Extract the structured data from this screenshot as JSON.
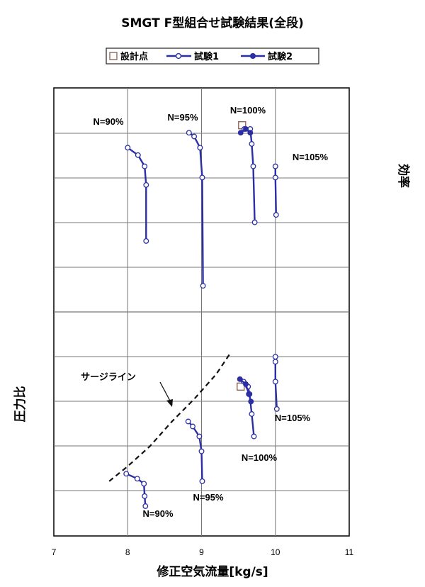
{
  "chart_data": {
    "type": "line",
    "title": "SMGT F型組合せ試験結果(全段)",
    "xlabel": "修正空気流量[kg/s]",
    "ylabel_top": "効率",
    "ylabel_bottom": "圧力比",
    "xlim": [
      7,
      11
    ],
    "x_ticks": [
      7,
      8,
      9,
      10,
      11
    ],
    "y_ticks_shown": false,
    "grid": true,
    "legend": {
      "position": "top",
      "items": [
        {
          "label": "設計点",
          "marker": "open-square"
        },
        {
          "label": "試験1",
          "marker": "open-circle"
        },
        {
          "label": "試験2",
          "marker": "filled-circle"
        }
      ]
    },
    "colors": {
      "series": "#2b2fa3",
      "design_point": "#8a5a4a",
      "grid": "#777777",
      "surge": "#111111"
    },
    "efficiency": {
      "series": [
        {
          "label": "N=90%",
          "points": [
            [
              8.0,
              0.77
            ],
            [
              8.14,
              0.76
            ],
            [
              8.23,
              0.745
            ],
            [
              8.25,
              0.72
            ],
            [
              8.25,
              0.645
            ]
          ]
        },
        {
          "label": "N=95%",
          "points": [
            [
              8.83,
              0.79
            ],
            [
              8.9,
              0.785
            ],
            [
              8.98,
              0.77
            ],
            [
              9.01,
              0.73
            ],
            [
              9.02,
              0.585
            ]
          ]
        },
        {
          "label": "N=100%",
          "points": [
            [
              9.58,
              0.795
            ],
            [
              9.66,
              0.795
            ],
            [
              9.68,
              0.775
            ],
            [
              9.7,
              0.745
            ],
            [
              9.72,
              0.67
            ]
          ]
        },
        {
          "label": "N=105%",
          "points": [
            [
              10.0,
              0.745
            ],
            [
              10.0,
              0.73
            ],
            [
              10.01,
              0.68
            ]
          ]
        }
      ],
      "series_test2": [
        [
          9.53,
          0.79
        ],
        [
          9.6,
          0.795
        ],
        [
          9.66,
          0.79
        ]
      ],
      "design_point": [
        9.55,
        0.8
      ]
    },
    "pressure_ratio": {
      "series": [
        {
          "label": "N=90%",
          "points": [
            [
              7.98,
              1.55
            ],
            [
              8.13,
              1.53
            ],
            [
              8.22,
              1.51
            ],
            [
              8.23,
              1.46
            ],
            [
              8.24,
              1.42
            ]
          ]
        },
        {
          "label": "N=95%",
          "points": [
            [
              8.82,
              1.76
            ],
            [
              8.88,
              1.74
            ],
            [
              8.97,
              1.7
            ],
            [
              9.0,
              1.64
            ],
            [
              9.01,
              1.52
            ]
          ]
        },
        {
          "label": "N=100%",
          "points": [
            [
              9.57,
              1.92
            ],
            [
              9.63,
              1.9
            ],
            [
              9.65,
              1.87
            ],
            [
              9.68,
              1.79
            ],
            [
              9.71,
              1.7
            ]
          ]
        },
        {
          "label": "N=105%",
          "points": [
            [
              10.0,
              2.02
            ],
            [
              10.0,
              2.0
            ],
            [
              10.0,
              1.92
            ],
            [
              10.02,
              1.81
            ]
          ]
        }
      ],
      "series_test2": [
        [
          9.52,
          1.93
        ],
        [
          9.6,
          1.91
        ],
        [
          9.64,
          1.87
        ],
        [
          9.67,
          1.84
        ]
      ],
      "design_point": [
        9.53,
        1.9
      ],
      "surge_line": [
        [
          7.75,
          1.52
        ],
        [
          8.0,
          1.58
        ],
        [
          8.3,
          1.66
        ],
        [
          8.6,
          1.76
        ],
        [
          8.9,
          1.85
        ],
        [
          9.2,
          1.95
        ],
        [
          9.38,
          2.03
        ]
      ]
    },
    "annotations": {
      "surge_label": "サージライン",
      "eff_labels": [
        "N=90%",
        "N=95%",
        "N=100%",
        "N=105%"
      ],
      "pr_labels": [
        "N=90%",
        "N=95%",
        "N=100%",
        "N=105%"
      ]
    }
  }
}
